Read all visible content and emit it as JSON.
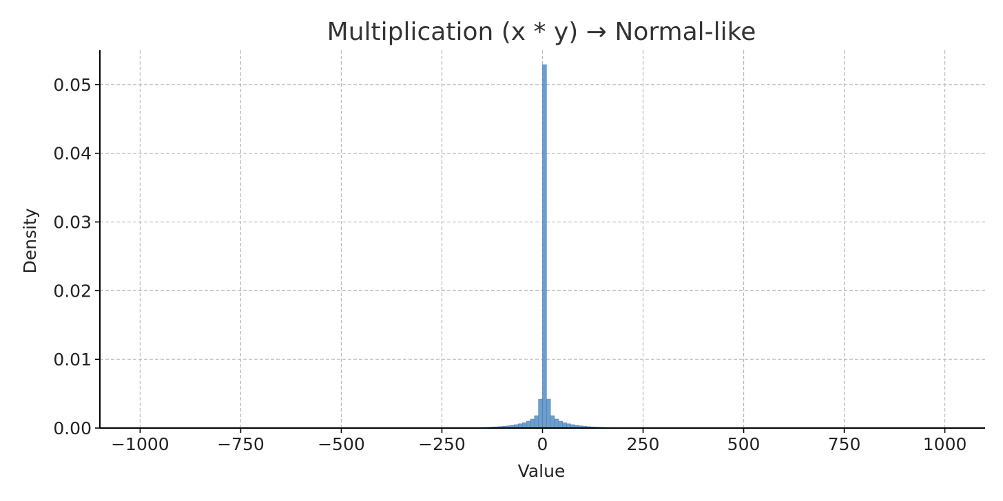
{
  "chart_data": {
    "type": "bar",
    "title": "Multiplication (x * y) → Normal-like",
    "xlabel": "Value",
    "ylabel": "Density",
    "xlim": [
      -1100,
      1100
    ],
    "ylim": [
      0,
      0.055
    ],
    "x_ticks": [
      -1000,
      -750,
      -500,
      -250,
      0,
      250,
      500,
      750,
      1000
    ],
    "x_tick_labels": [
      "−1000",
      "−750",
      "−500",
      "−250",
      "0",
      "250",
      "500",
      "750",
      "1000"
    ],
    "y_ticks": [
      0,
      0.01,
      0.02,
      0.03,
      0.04,
      0.05
    ],
    "y_tick_labels": [
      "0.00",
      "0.01",
      "0.02",
      "0.03",
      "0.04",
      "0.05"
    ],
    "grid": true,
    "bar_color": "#4a86bf",
    "bin_width": 10,
    "bins": [
      {
        "x0": -170,
        "value": 5e-05
      },
      {
        "x0": -160,
        "value": 7e-05
      },
      {
        "x0": -150,
        "value": 9e-05
      },
      {
        "x0": -140,
        "value": 0.00011
      },
      {
        "x0": -130,
        "value": 0.00014
      },
      {
        "x0": -120,
        "value": 0.00017
      },
      {
        "x0": -110,
        "value": 0.00021
      },
      {
        "x0": -100,
        "value": 0.00026
      },
      {
        "x0": -90,
        "value": 0.00032
      },
      {
        "x0": -80,
        "value": 0.0004
      },
      {
        "x0": -70,
        "value": 0.0005
      },
      {
        "x0": -60,
        "value": 0.00062
      },
      {
        "x0": -50,
        "value": 0.00078
      },
      {
        "x0": -40,
        "value": 0.001
      },
      {
        "x0": -30,
        "value": 0.0013
      },
      {
        "x0": -20,
        "value": 0.0018
      },
      {
        "x0": -10,
        "value": 0.0042
      },
      {
        "x0": 0,
        "value": 0.0529
      },
      {
        "x0": 10,
        "value": 0.0042
      },
      {
        "x0": 20,
        "value": 0.0018
      },
      {
        "x0": 30,
        "value": 0.0013
      },
      {
        "x0": 40,
        "value": 0.001
      },
      {
        "x0": 50,
        "value": 0.00078
      },
      {
        "x0": 60,
        "value": 0.00062
      },
      {
        "x0": 70,
        "value": 0.0005
      },
      {
        "x0": 80,
        "value": 0.0004
      },
      {
        "x0": 90,
        "value": 0.00032
      },
      {
        "x0": 100,
        "value": 0.00026
      },
      {
        "x0": 110,
        "value": 0.00021
      },
      {
        "x0": 120,
        "value": 0.00017
      },
      {
        "x0": 130,
        "value": 0.00014
      },
      {
        "x0": 140,
        "value": 0.00011
      },
      {
        "x0": 150,
        "value": 9e-05
      },
      {
        "x0": 160,
        "value": 7e-05
      }
    ]
  }
}
